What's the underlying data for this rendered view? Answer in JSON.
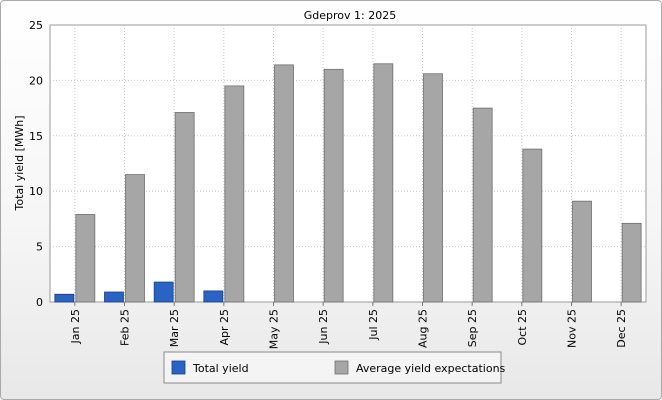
{
  "chart_data": {
    "type": "bar",
    "title": "Gdeprov 1: 2025",
    "xlabel": "",
    "ylabel": "Total yield [MWh]",
    "ylim": [
      0,
      25
    ],
    "yticks": [
      0,
      5,
      10,
      15,
      20,
      25
    ],
    "grid": true,
    "legend_position": "bottom",
    "categories": [
      "Jan 25",
      "Feb 25",
      "Mar 25",
      "Apr 25",
      "May 25",
      "Jun 25",
      "Jul 25",
      "Aug 25",
      "Sep 25",
      "Oct 25",
      "Nov 25",
      "Dec 25"
    ],
    "series": [
      {
        "name": "Total yield",
        "color": "#2a63c4",
        "values": [
          0.7,
          0.9,
          1.8,
          1.0,
          null,
          null,
          null,
          null,
          null,
          null,
          null,
          null
        ]
      },
      {
        "name": "Average yield expectations",
        "color": "#a6a6a6",
        "values": [
          7.9,
          11.5,
          17.1,
          19.5,
          21.4,
          21.0,
          21.5,
          20.6,
          17.5,
          13.8,
          9.1,
          7.1
        ]
      }
    ]
  }
}
